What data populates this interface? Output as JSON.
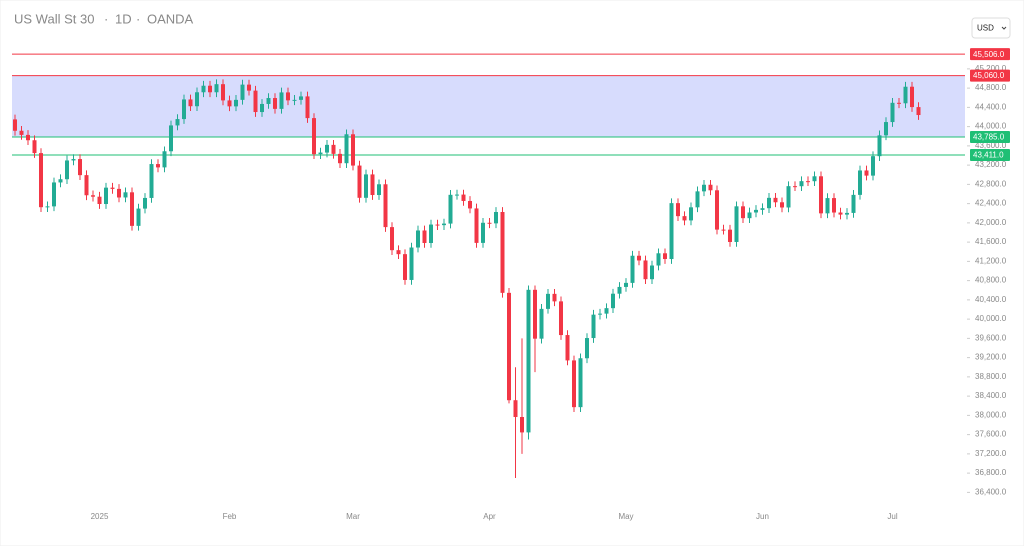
{
  "chart_data": {
    "type": "candlestick",
    "title": "US Wall St 30",
    "interval": "1D",
    "source": "OANDA",
    "currency": "USD",
    "categories": [
      null,
      null,
      null,
      null,
      null,
      null,
      null,
      null,
      null,
      null,
      null,
      null,
      null,
      "2025",
      null,
      null,
      null,
      null,
      null,
      null,
      null,
      null,
      null,
      null,
      null,
      null,
      null,
      null,
      null,
      null,
      null,
      null,
      null,
      "Feb",
      null,
      null,
      null,
      null,
      null,
      null,
      null,
      null,
      null,
      null,
      null,
      null,
      null,
      null,
      null,
      null,
      null,
      null,
      "Mar",
      null,
      null,
      null,
      null,
      null,
      null,
      null,
      null,
      null,
      null,
      null,
      null,
      null,
      null,
      null,
      null,
      null,
      null,
      null,
      null,
      "Apr",
      null,
      null,
      null,
      null,
      null,
      null,
      null,
      null,
      null,
      null,
      null,
      null,
      null,
      null,
      null,
      null,
      null,
      null,
      null,
      null,
      "May",
      null,
      null,
      null,
      null,
      null,
      null,
      null,
      null,
      null,
      null,
      null,
      null,
      null,
      null,
      null,
      null,
      null,
      null,
      null,
      null,
      "Jun",
      null,
      null,
      null,
      null,
      null,
      null,
      null,
      null,
      null,
      null,
      null,
      null,
      null,
      null,
      null,
      null,
      null,
      null,
      null,
      "Jul",
      null,
      null,
      null,
      null
    ],
    "open": [
      44150,
      43914,
      43828,
      43717,
      43450,
      42326,
      42343,
      42840,
      42907,
      43297,
      43326,
      42992,
      42574,
      42544,
      42392,
      42732,
      42706,
      42528,
      42635,
      41938,
      42297,
      42518,
      43222,
      43153,
      43488,
      44025,
      44157,
      44565,
      44424,
      44714,
      44850,
      44714,
      44882,
      44545,
      44421,
      44556,
      44873,
      44748,
      44303,
      44471,
      44594,
      44369,
      44711,
      44546,
      44556,
      44628,
      44177,
      43428,
      43461,
      43621,
      43434,
      43240,
      43841,
      43191,
      42521,
      43007,
      42579,
      42802,
      41912,
      41433,
      41350,
      40814,
      41488,
      41842,
      41582,
      41965,
      41953,
      41985,
      42583,
      42588,
      42455,
      42300,
      41584,
      42002,
      41990,
      42226,
      40546,
      38315,
      37966,
      37646,
      40609,
      39594,
      40213,
      40525,
      40369,
      39669,
      39142,
      38171,
      39187,
      39607,
      40093,
      40114,
      40228,
      40528,
      40669,
      40753,
      41317,
      41219,
      40830,
      41114,
      41368,
      41249,
      42410,
      42140,
      42051,
      42323,
      42655,
      42792,
      42677,
      41860,
      41859,
      41603,
      42344,
      42098,
      42216,
      42270,
      42305,
      42520,
      42428,
      42320,
      42763,
      42762,
      42867,
      42866,
      42968,
      42198,
      42515,
      42215,
      42172,
      42207,
      42582,
      43089,
      42982,
      43386,
      43819,
      44095,
      44495,
      44485,
      44829,
      44406
    ],
    "high": [
      44250,
      44014,
      43928,
      43817,
      43550,
      42443,
      42940,
      43007,
      43397,
      43426,
      43426,
      43092,
      42674,
      42644,
      42832,
      42832,
      42806,
      42735,
      42735,
      42397,
      42618,
      43322,
      43322,
      43588,
      44125,
      44257,
      44665,
      44665,
      44814,
      44950,
      44950,
      44982,
      44982,
      44645,
      44656,
      44973,
      44973,
      44848,
      44571,
      44694,
      44694,
      44811,
      44811,
      44656,
      44728,
      44728,
      44277,
      43561,
      43721,
      43721,
      43534,
      43941,
      43941,
      43291,
      43107,
      43107,
      42902,
      42902,
      42012,
      41533,
      41450,
      41588,
      41942,
      41942,
      42065,
      42065,
      42085,
      42683,
      42688,
      42688,
      42555,
      42400,
      42102,
      42102,
      42326,
      42326,
      40646,
      39000,
      39600,
      40700,
      40700,
      40313,
      40625,
      40625,
      40469,
      39769,
      39242,
      39287,
      39707,
      40193,
      40214,
      40328,
      40628,
      40769,
      40853,
      41417,
      41417,
      41319,
      41214,
      41468,
      41468,
      42510,
      42510,
      42240,
      42423,
      42755,
      42892,
      42892,
      42777,
      41960,
      41959,
      42444,
      42444,
      42316,
      42370,
      42405,
      42620,
      42620,
      42528,
      42863,
      42863,
      42967,
      42967,
      43068,
      43068,
      42615,
      42615,
      42315,
      42307,
      42682,
      43189,
      43189,
      43486,
      43919,
      44195,
      44595,
      44595,
      44929,
      44929,
      44506
    ],
    "low": [
      43814,
      43728,
      43617,
      43350,
      42226,
      42226,
      42243,
      42740,
      42807,
      43197,
      42892,
      42474,
      42444,
      42292,
      42292,
      42606,
      42428,
      42428,
      41838,
      41838,
      42197,
      42418,
      43053,
      43053,
      43388,
      43925,
      44057,
      44324,
      44324,
      44614,
      44614,
      44614,
      44445,
      44321,
      44321,
      44456,
      44648,
      44203,
      44203,
      44371,
      44269,
      44269,
      44446,
      44446,
      44456,
      44077,
      43328,
      43328,
      43361,
      43334,
      43140,
      43140,
      43091,
      42421,
      42421,
      42479,
      42479,
      41812,
      41333,
      41250,
      40714,
      40714,
      41388,
      41482,
      41482,
      41853,
      41853,
      41885,
      42483,
      42355,
      42200,
      41484,
      41484,
      41890,
      41890,
      40446,
      38250,
      36700,
      37200,
      37500,
      38900,
      39494,
      40113,
      40269,
      39569,
      39042,
      38071,
      38071,
      39087,
      39507,
      39993,
      40014,
      40128,
      40428,
      40569,
      40653,
      41119,
      40730,
      40730,
      41014,
      41149,
      41149,
      42040,
      41951,
      41951,
      42223,
      42555,
      42577,
      41760,
      41759,
      41503,
      41503,
      41998,
      41998,
      42116,
      42170,
      42205,
      42328,
      42220,
      42220,
      42662,
      42662,
      42766,
      42766,
      42098,
      42098,
      42115,
      42072,
      42072,
      42107,
      42482,
      42882,
      42882,
      43286,
      43719,
      43995,
      44385,
      44385,
      44306,
      44141
    ],
    "close": [
      43914,
      43828,
      43717,
      43450,
      42326,
      42343,
      42840,
      42907,
      43297,
      43326,
      42992,
      42574,
      42544,
      42392,
      42732,
      42706,
      42528,
      42635,
      41938,
      42297,
      42518,
      43222,
      43153,
      43488,
      44025,
      44157,
      44565,
      44424,
      44714,
      44850,
      44714,
      44882,
      44545,
      44421,
      44556,
      44873,
      44748,
      44303,
      44471,
      44594,
      44369,
      44711,
      44546,
      44556,
      44628,
      44177,
      43428,
      43461,
      43621,
      43434,
      43240,
      43841,
      43191,
      42521,
      43007,
      42579,
      42802,
      41912,
      41433,
      41350,
      40814,
      41488,
      41842,
      41582,
      41965,
      41953,
      41985,
      42583,
      42588,
      42455,
      42300,
      41584,
      42002,
      41990,
      42226,
      40546,
      38315,
      37966,
      37646,
      40609,
      39594,
      40213,
      40525,
      40369,
      39669,
      39142,
      38171,
      39187,
      39607,
      40093,
      40114,
      40228,
      40528,
      40669,
      40753,
      41317,
      41219,
      40830,
      41114,
      41368,
      41249,
      42410,
      42140,
      42051,
      42323,
      42655,
      42792,
      42677,
      41860,
      41859,
      41603,
      42344,
      42098,
      42216,
      42270,
      42305,
      42520,
      42428,
      42320,
      42763,
      42762,
      42867,
      42866,
      42968,
      42198,
      42515,
      42215,
      42172,
      42207,
      42582,
      43089,
      42982,
      43386,
      43819,
      44095,
      44495,
      44485,
      44829,
      44406,
      44241
    ],
    "up_color": "#22ab94",
    "down_color": "#f23645",
    "ylim": [
      36200,
      45800
    ],
    "yticks": [
      {
        "value": 36400,
        "label": "36,400.0"
      },
      {
        "value": 36800,
        "label": "36,800.0"
      },
      {
        "value": 37200,
        "label": "37,200.0"
      },
      {
        "value": 37600,
        "label": "37,600.0"
      },
      {
        "value": 38000,
        "label": "38,000.0"
      },
      {
        "value": 38400,
        "label": "38,400.0"
      },
      {
        "value": 38800,
        "label": "38,800.0"
      },
      {
        "value": 39200,
        "label": "39,200.0"
      },
      {
        "value": 39600,
        "label": "39,600.0"
      },
      {
        "value": 40000,
        "label": "40,000.0"
      },
      {
        "value": 40400,
        "label": "40,400.0"
      },
      {
        "value": 40800,
        "label": "40,800.0"
      },
      {
        "value": 41200,
        "label": "41,200.0"
      },
      {
        "value": 41600,
        "label": "41,600.0"
      },
      {
        "value": 42000,
        "label": "42,000.0"
      },
      {
        "value": 42400,
        "label": "42,400.0"
      },
      {
        "value": 42800,
        "label": "42,800.0"
      },
      {
        "value": 43200,
        "label": "43,200.0"
      },
      {
        "value": 43600,
        "label": "43,600.0"
      },
      {
        "value": 44000,
        "label": "44,000.0"
      },
      {
        "value": 44400,
        "label": "44,400.0"
      },
      {
        "value": 44800,
        "label": "44,800.0"
      },
      {
        "value": 45200,
        "label": "45,200.0"
      }
    ],
    "levels": [
      {
        "value": 45506,
        "label": "45,506.0",
        "color": "#f23645"
      },
      {
        "value": 45060,
        "label": "45,060.0",
        "color": "#f23645"
      },
      {
        "value": 43785,
        "label": "43,785.0",
        "color": "#1fbf75"
      },
      {
        "value": 43411,
        "label": "43,411.0",
        "color": "#1fbf75"
      }
    ],
    "zone_color": "#d7dcfd"
  }
}
